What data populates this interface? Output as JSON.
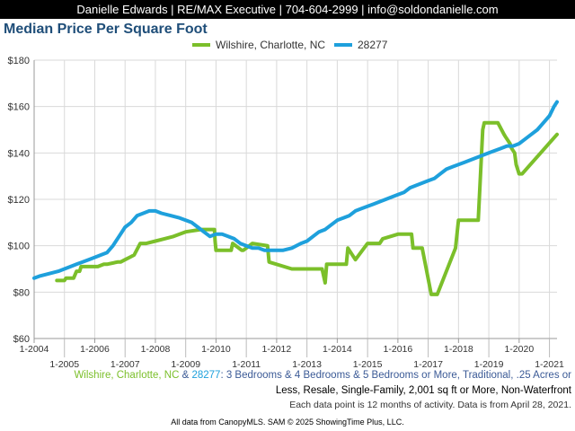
{
  "header": {
    "text": "Danielle Edwards | RE/MAX Executive | 704-604-2999 | info@soldondanielle.com"
  },
  "colors": {
    "header_bg": "#000000",
    "title": "#1f4e79",
    "wilshire": "#7bbf2a",
    "zip": "#1ea0dc",
    "caption_text": "#3b5a96",
    "grid": "#d9d9d9"
  },
  "caption": {
    "area1": "Wilshire, Charlotte, NC",
    "amp": " & ",
    "area2": "28277",
    "line1_rest": ": 3 Bedrooms & 4 Bedrooms & 5 Bedrooms or More, Traditional, .25 Acres or",
    "line2": "Less, Resale, Single-Family, 2,001 sq ft or More, Non-Waterfront"
  },
  "note": "Each data point is 12 months of activity. Data is from April 28, 2021.",
  "footer": "All data from CanopyMLS. SAM © 2025 ShowingTime Plus, LLC.",
  "chart_data": {
    "type": "line",
    "title": "Median Price Per Square Foot",
    "grid": true,
    "legend_position": "top-center",
    "ylim": [
      60,
      180
    ],
    "yticks": [
      60,
      80,
      100,
      120,
      140,
      160,
      180
    ],
    "ytick_labels": [
      "$60",
      "$80",
      "$100",
      "$120",
      "$140",
      "$160",
      "$180"
    ],
    "xlim": [
      2004.0,
      2021.25
    ],
    "xticks_top": [
      "1-2004",
      "1-2006",
      "1-2008",
      "1-2010",
      "1-2012",
      "1-2014",
      "1-2016",
      "1-2018",
      "1-2020"
    ],
    "xticks_bottom": [
      "1-2005",
      "1-2007",
      "1-2009",
      "1-2011",
      "1-2013",
      "1-2015",
      "1-2017",
      "1-2019",
      "1-2021"
    ],
    "series": [
      {
        "name": "Wilshire, Charlotte, NC",
        "color": "#7bbf2a",
        "x": [
          2004.75,
          2005.0,
          2005.05,
          2005.3,
          2005.4,
          2005.5,
          2005.55,
          2006.0,
          2006.1,
          2006.3,
          2006.4,
          2006.75,
          2006.85,
          2007.0,
          2007.15,
          2007.3,
          2007.5,
          2007.7,
          2008.0,
          2008.3,
          2008.6,
          2008.8,
          2009.0,
          2009.5,
          2009.6,
          2009.62,
          2009.95,
          2009.97,
          2010.0,
          2010.05,
          2010.5,
          2010.55,
          2010.85,
          2010.9,
          2011.2,
          2011.7,
          2011.75,
          2012.5,
          2012.6,
          2012.7,
          2012.75,
          2013.5,
          2013.6,
          2013.65,
          2013.8,
          2014.1,
          2014.3,
          2014.35,
          2014.6,
          2015.0,
          2015.1,
          2015.3,
          2015.4,
          2015.5,
          2016.0,
          2016.1,
          2016.45,
          2016.5,
          2016.7,
          2016.8,
          2017.1,
          2017.3,
          2017.9,
          2018.0,
          2018.2,
          2018.35,
          2018.6,
          2018.65,
          2018.8,
          2018.85,
          2019.1,
          2019.3,
          2019.5,
          2019.55,
          2019.7,
          2019.75,
          2019.85,
          2019.9,
          2020.0,
          2020.1,
          2021.25
        ],
        "y": [
          85,
          85,
          86,
          86,
          89,
          89,
          91,
          91,
          91,
          92,
          92,
          93,
          93,
          94,
          95,
          96,
          101,
          101,
          102,
          103,
          104,
          105,
          106,
          107,
          107,
          107,
          107,
          102,
          98,
          98,
          98,
          101,
          98,
          98,
          101,
          100,
          93,
          90,
          90,
          90,
          90,
          90,
          84,
          92,
          92,
          92,
          92,
          99,
          94,
          101,
          101,
          101,
          101,
          103,
          105,
          105,
          105,
          99,
          99,
          99,
          79,
          79,
          99,
          111,
          111,
          111,
          111,
          111,
          150,
          153,
          153,
          153,
          148,
          147,
          144,
          142,
          140,
          135,
          131,
          131,
          148
        ]
      },
      {
        "name": "28277",
        "color": "#1ea0dc",
        "x": [
          2004.0,
          2004.2,
          2004.5,
          2004.8,
          2005.0,
          2005.2,
          2005.4,
          2005.6,
          2005.8,
          2006.0,
          2006.2,
          2006.4,
          2006.6,
          2006.8,
          2007.0,
          2007.2,
          2007.4,
          2007.6,
          2007.8,
          2008.0,
          2008.2,
          2008.5,
          2008.8,
          2009.0,
          2009.2,
          2009.4,
          2009.6,
          2009.8,
          2010.0,
          2010.2,
          2010.4,
          2010.6,
          2010.8,
          2011.0,
          2011.2,
          2011.4,
          2011.6,
          2011.8,
          2012.0,
          2012.2,
          2012.5,
          2012.8,
          2013.0,
          2013.2,
          2013.4,
          2013.6,
          2013.8,
          2014.0,
          2014.2,
          2014.4,
          2014.6,
          2014.8,
          2015.0,
          2015.2,
          2015.4,
          2015.6,
          2015.8,
          2016.0,
          2016.2,
          2016.4,
          2016.6,
          2016.8,
          2017.0,
          2017.2,
          2017.4,
          2017.6,
          2017.8,
          2018.0,
          2018.2,
          2018.4,
          2018.6,
          2018.8,
          2019.0,
          2019.2,
          2019.4,
          2019.6,
          2019.8,
          2020.0,
          2020.2,
          2020.4,
          2020.6,
          2020.8,
          2021.0,
          2021.15,
          2021.25
        ],
        "y": [
          86,
          87,
          88,
          89,
          90,
          91,
          92,
          93,
          94,
          95,
          96,
          97,
          100,
          104,
          108,
          110,
          113,
          114,
          115,
          115,
          114,
          113,
          112,
          111,
          110,
          108,
          106,
          104,
          105,
          105,
          104,
          103,
          101,
          100,
          99,
          99,
          98,
          98,
          98,
          98,
          99,
          101,
          102,
          104,
          106,
          107,
          109,
          111,
          112,
          113,
          115,
          116,
          117,
          118,
          119,
          120,
          121,
          122,
          123,
          125,
          126,
          127,
          128,
          129,
          131,
          133,
          134,
          135,
          136,
          137,
          138,
          139,
          140,
          141,
          142,
          143,
          143,
          144,
          146,
          148,
          150,
          153,
          156,
          160,
          162
        ]
      }
    ]
  }
}
